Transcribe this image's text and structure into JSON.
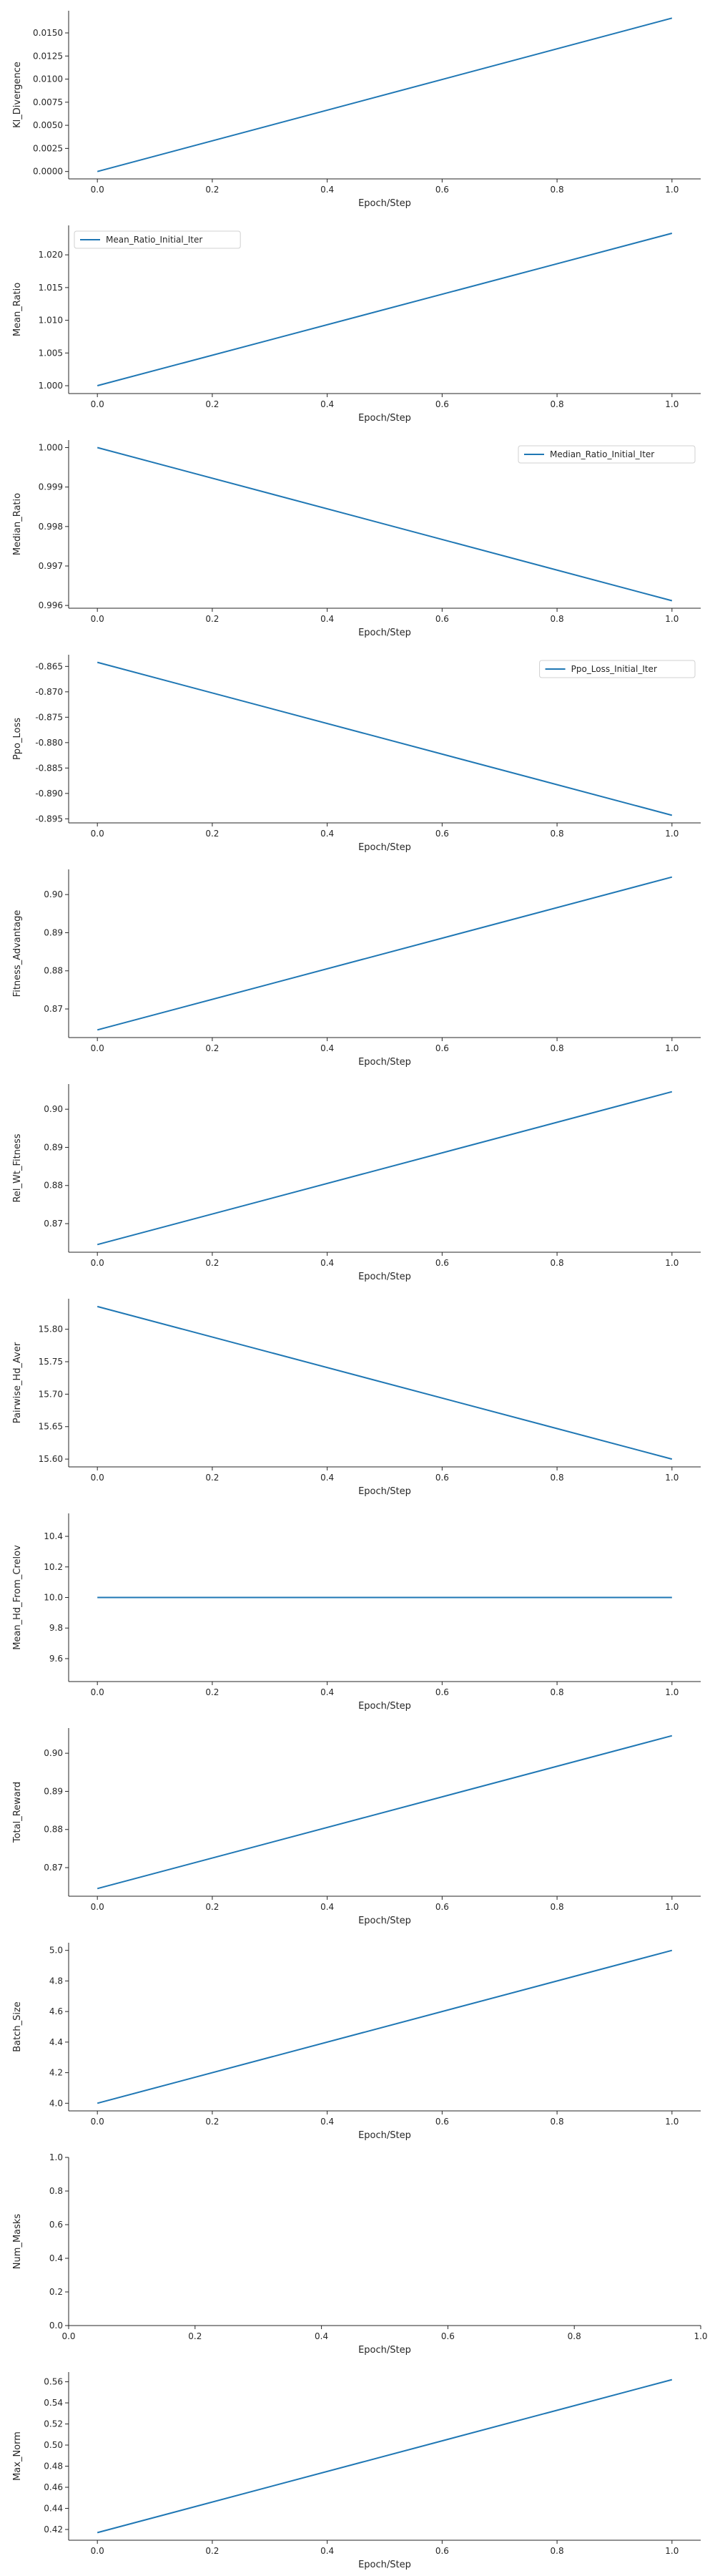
{
  "colors": {
    "line": "#1f77b4",
    "axis": "#262626",
    "legend_border": "#d0d0d0"
  },
  "xlabel": "Epoch/Step",
  "chart_data": [
    {
      "type": "line",
      "ylabel": "Kl_Divergence",
      "x": [
        0,
        1
      ],
      "y": [
        0.0,
        0.0166
      ],
      "xlim": [
        -0.05,
        1.05
      ],
      "ylim": [
        -0.0008,
        0.0174
      ],
      "xticks": [
        "0.0",
        "0.2",
        "0.4",
        "0.6",
        "0.8",
        "1.0"
      ],
      "yticks": [
        "0.0000",
        "0.0025",
        "0.0050",
        "0.0075",
        "0.0100",
        "0.0125",
        "0.0150"
      ],
      "legend": null,
      "legend_position": null
    },
    {
      "type": "line",
      "ylabel": "Mean_Ratio",
      "x": [
        0,
        1
      ],
      "y": [
        1.0,
        1.0233
      ],
      "xlim": [
        -0.05,
        1.05
      ],
      "ylim": [
        0.9988,
        1.0245
      ],
      "xticks": [
        "0.0",
        "0.2",
        "0.4",
        "0.6",
        "0.8",
        "1.0"
      ],
      "yticks": [
        "1.000",
        "1.005",
        "1.010",
        "1.015",
        "1.020"
      ],
      "legend": "Mean_Ratio_Initial_Iter",
      "legend_position": "top-left"
    },
    {
      "type": "line",
      "ylabel": "Median_Ratio",
      "x": [
        0,
        1
      ],
      "y": [
        1.0,
        0.99612
      ],
      "xlim": [
        -0.05,
        1.05
      ],
      "ylim": [
        0.99593,
        1.00019
      ],
      "xticks": [
        "0.0",
        "0.2",
        "0.4",
        "0.6",
        "0.8",
        "1.0"
      ],
      "yticks": [
        "0.996",
        "0.997",
        "0.998",
        "0.999",
        "1.000"
      ],
      "legend": "Median_Ratio_Initial_Iter",
      "legend_position": "top-right"
    },
    {
      "type": "line",
      "ylabel": "Ppo_Loss",
      "x": [
        0,
        1
      ],
      "y": [
        -0.8642,
        -0.8943
      ],
      "xlim": [
        -0.05,
        1.05
      ],
      "ylim": [
        -0.8958,
        -0.8627
      ],
      "xticks": [
        "0.0",
        "0.2",
        "0.4",
        "0.6",
        "0.8",
        "1.0"
      ],
      "yticks": [
        "-0.865",
        "-0.870",
        "-0.875",
        "-0.880",
        "-0.885",
        "-0.890",
        "-0.895"
      ],
      "legend": "Ppo_Loss_Initial_Iter",
      "legend_position": "top-right"
    },
    {
      "type": "line",
      "ylabel": "Fitness_Advantage",
      "x": [
        0,
        1
      ],
      "y": [
        0.8645,
        0.9046
      ],
      "xlim": [
        -0.05,
        1.05
      ],
      "ylim": [
        0.8625,
        0.9066
      ],
      "xticks": [
        "0.0",
        "0.2",
        "0.4",
        "0.6",
        "0.8",
        "1.0"
      ],
      "yticks": [
        "0.87",
        "0.88",
        "0.89",
        "0.90"
      ],
      "legend": null,
      "legend_position": null
    },
    {
      "type": "line",
      "ylabel": "Rel_Wt_Fitness",
      "x": [
        0,
        1
      ],
      "y": [
        0.8645,
        0.9046
      ],
      "xlim": [
        -0.05,
        1.05
      ],
      "ylim": [
        0.8625,
        0.9066
      ],
      "xticks": [
        "0.0",
        "0.2",
        "0.4",
        "0.6",
        "0.8",
        "1.0"
      ],
      "yticks": [
        "0.87",
        "0.88",
        "0.89",
        "0.90"
      ],
      "legend": null,
      "legend_position": null
    },
    {
      "type": "line",
      "ylabel": "Pairwise_Hd_Aver",
      "x": [
        0,
        1
      ],
      "y": [
        15.835,
        15.6
      ],
      "xlim": [
        -0.05,
        1.05
      ],
      "ylim": [
        15.588,
        15.847
      ],
      "xticks": [
        "0.0",
        "0.2",
        "0.4",
        "0.6",
        "0.8",
        "1.0"
      ],
      "yticks": [
        "15.60",
        "15.65",
        "15.70",
        "15.75",
        "15.80"
      ],
      "legend": null,
      "legend_position": null
    },
    {
      "type": "line",
      "ylabel": "Mean_Hd_From_Crelov",
      "x": [
        0,
        1
      ],
      "y": [
        10.0,
        10.0
      ],
      "xlim": [
        -0.05,
        1.05
      ],
      "ylim": [
        9.45,
        10.55
      ],
      "xticks": [
        "0.0",
        "0.2",
        "0.4",
        "0.6",
        "0.8",
        "1.0"
      ],
      "yticks": [
        "9.6",
        "9.8",
        "10.0",
        "10.2",
        "10.4"
      ],
      "legend": null,
      "legend_position": null
    },
    {
      "type": "line",
      "ylabel": "Total_Reward",
      "x": [
        0,
        1
      ],
      "y": [
        0.8645,
        0.9046
      ],
      "xlim": [
        -0.05,
        1.05
      ],
      "ylim": [
        0.8625,
        0.9066
      ],
      "xticks": [
        "0.0",
        "0.2",
        "0.4",
        "0.6",
        "0.8",
        "1.0"
      ],
      "yticks": [
        "0.87",
        "0.88",
        "0.89",
        "0.90"
      ],
      "legend": null,
      "legend_position": null
    },
    {
      "type": "line",
      "ylabel": "Batch_Size",
      "x": [
        0,
        1
      ],
      "y": [
        4.0,
        5.0
      ],
      "xlim": [
        -0.05,
        1.05
      ],
      "ylim": [
        3.95,
        5.05
      ],
      "xticks": [
        "0.0",
        "0.2",
        "0.4",
        "0.6",
        "0.8",
        "1.0"
      ],
      "yticks": [
        "4.0",
        "4.2",
        "4.4",
        "4.6",
        "4.8",
        "5.0"
      ],
      "legend": null,
      "legend_position": null
    },
    {
      "type": "line",
      "ylabel": "Num_Masks",
      "x": [],
      "y": [],
      "xlim": [
        0,
        1
      ],
      "ylim": [
        0,
        1
      ],
      "xticks": [
        "0.0",
        "0.2",
        "0.4",
        "0.6",
        "0.8",
        "1.0"
      ],
      "yticks": [
        "0.0",
        "0.2",
        "0.4",
        "0.6",
        "0.8",
        "1.0"
      ],
      "legend": null,
      "legend_position": null
    },
    {
      "type": "line",
      "ylabel": "Max_Norm",
      "x": [
        0,
        1
      ],
      "y": [
        0.417,
        0.562
      ],
      "xlim": [
        -0.05,
        1.05
      ],
      "ylim": [
        0.4098,
        0.5692
      ],
      "xticks": [
        "0.0",
        "0.2",
        "0.4",
        "0.6",
        "0.8",
        "1.0"
      ],
      "yticks": [
        "0.42",
        "0.44",
        "0.46",
        "0.48",
        "0.50",
        "0.52",
        "0.54",
        "0.56"
      ],
      "legend": null,
      "legend_position": null
    }
  ]
}
